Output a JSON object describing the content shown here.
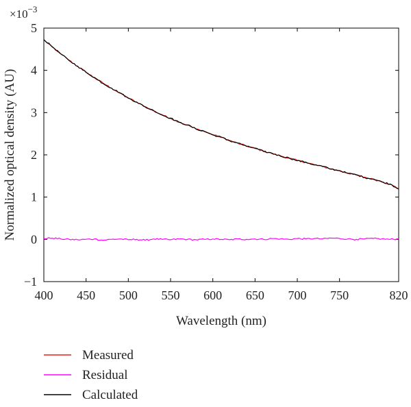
{
  "chart_data": {
    "type": "line",
    "xlabel": "Wavelength (nm)",
    "ylabel": "Normalized optical density (AU)",
    "y_multiplier_label": "×10",
    "y_multiplier_exponent": "−3",
    "xlim": [
      400,
      820
    ],
    "ylim": [
      -1,
      5
    ],
    "x_ticks": [
      400,
      450,
      500,
      550,
      600,
      650,
      700,
      750,
      820
    ],
    "x_tick_labels": [
      "400",
      "450",
      "500",
      "550",
      "600",
      "650",
      "700",
      "750",
      "820"
    ],
    "y_ticks": [
      -1,
      0,
      1,
      2,
      3,
      4,
      5
    ],
    "y_tick_labels": [
      "−1",
      "0",
      "1",
      "2",
      "3",
      "4",
      "5"
    ],
    "grid": false,
    "legend_position": "below-left",
    "series": [
      {
        "name": "Measured",
        "color": "#e8201a",
        "x": [
          400,
          410,
          420,
          430,
          440,
          450,
          460,
          470,
          480,
          490,
          500,
          510,
          520,
          530,
          540,
          550,
          560,
          570,
          580,
          590,
          600,
          610,
          620,
          630,
          640,
          650,
          660,
          670,
          680,
          690,
          700,
          710,
          720,
          730,
          740,
          750,
          760,
          770,
          780,
          790,
          800,
          810,
          820
        ],
        "values": [
          4.72,
          4.55,
          4.39,
          4.24,
          4.09,
          3.96,
          3.82,
          3.7,
          3.58,
          3.46,
          3.35,
          3.24,
          3.14,
          3.04,
          2.95,
          2.86,
          2.78,
          2.7,
          2.62,
          2.55,
          2.48,
          2.41,
          2.34,
          2.27,
          2.21,
          2.15,
          2.09,
          2.03,
          1.98,
          1.92,
          1.87,
          1.82,
          1.77,
          1.72,
          1.67,
          1.62,
          1.57,
          1.52,
          1.47,
          1.42,
          1.37,
          1.3,
          1.2
        ]
      },
      {
        "name": "Residual",
        "color": "#ff00ff",
        "x": [
          400,
          410,
          420,
          430,
          440,
          450,
          460,
          470,
          480,
          490,
          500,
          510,
          520,
          530,
          540,
          550,
          560,
          570,
          580,
          590,
          600,
          610,
          620,
          630,
          640,
          650,
          660,
          670,
          680,
          690,
          700,
          710,
          720,
          730,
          740,
          750,
          760,
          770,
          780,
          790,
          800,
          810,
          820
        ],
        "values": [
          0.02,
          0.03,
          0.01,
          0.0,
          -0.01,
          0.0,
          0.01,
          -0.02,
          0.0,
          0.01,
          -0.01,
          0.0,
          -0.02,
          0.01,
          0.0,
          -0.01,
          0.01,
          0.0,
          -0.01,
          0.0,
          0.01,
          0.0,
          -0.01,
          0.01,
          0.0,
          0.01,
          0.0,
          0.02,
          0.01,
          0.0,
          0.02,
          0.01,
          0.02,
          0.01,
          0.03,
          0.02,
          0.01,
          0.0,
          0.01,
          0.02,
          0.01,
          0.0,
          0.01
        ]
      },
      {
        "name": "Calculated",
        "color": "#000000",
        "x": [
          400,
          410,
          420,
          430,
          440,
          450,
          460,
          470,
          480,
          490,
          500,
          510,
          520,
          530,
          540,
          550,
          560,
          570,
          580,
          590,
          600,
          610,
          620,
          630,
          640,
          650,
          660,
          670,
          680,
          690,
          700,
          710,
          720,
          730,
          740,
          750,
          760,
          770,
          780,
          790,
          800,
          810,
          820
        ],
        "values": [
          4.73,
          4.56,
          4.39,
          4.23,
          4.1,
          3.95,
          3.83,
          3.69,
          3.58,
          3.47,
          3.34,
          3.25,
          3.13,
          3.05,
          2.94,
          2.87,
          2.77,
          2.71,
          2.61,
          2.56,
          2.47,
          2.42,
          2.33,
          2.28,
          2.2,
          2.16,
          2.08,
          2.04,
          1.97,
          1.93,
          1.86,
          1.83,
          1.76,
          1.73,
          1.66,
          1.63,
          1.56,
          1.53,
          1.46,
          1.43,
          1.36,
          1.31,
          1.19
        ]
      }
    ],
    "legend_order": [
      "Measured",
      "Residual",
      "Calculated"
    ]
  }
}
